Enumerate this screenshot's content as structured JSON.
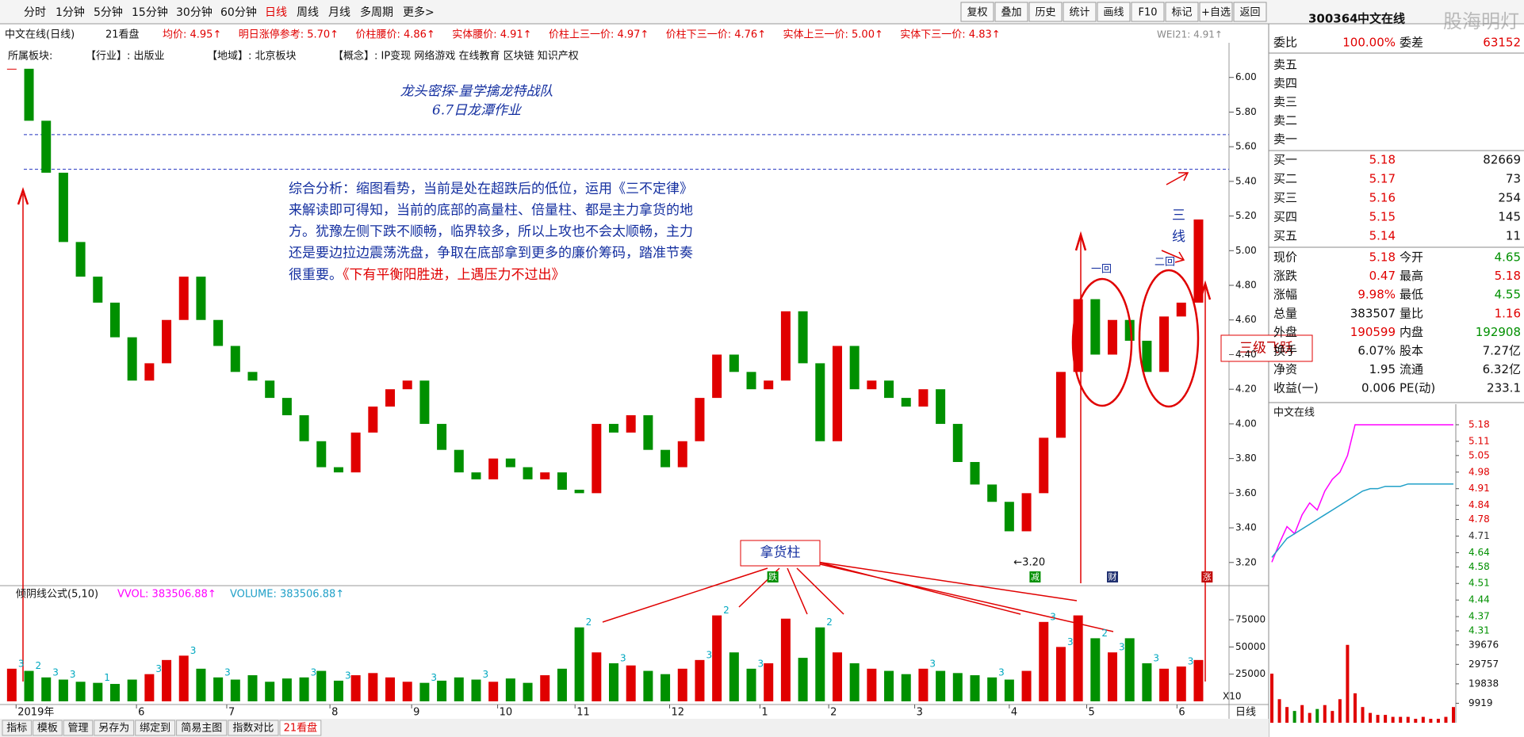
{
  "toolbar": {
    "periods": [
      "分时",
      "1分钟",
      "5分钟",
      "15分钟",
      "30分钟",
      "60分钟",
      "日线",
      "周线",
      "月线",
      "多周期",
      "更多>"
    ],
    "active": 6,
    "buttons": [
      "复权",
      "叠加",
      "历史",
      "统计",
      "画线",
      "F10",
      "标记",
      "+自选",
      "返回"
    ]
  },
  "info": {
    "name": "中文在线(日线)",
    "template": "21看盘",
    "indicators": [
      "均价: 4.95↑",
      "明日涨停参考: 5.70↑",
      "价柱腰价: 4.86↑",
      "实体腰价: 4.91↑",
      "价柱上三一价: 4.97↑",
      "价柱下三一价: 4.76↑",
      "实体上三一价: 5.00↑",
      "实体下三一价: 4.83↑"
    ],
    "wei": "WEI21: 4.91↑"
  },
  "sector": {
    "label": "所属板块:",
    "items": [
      "【行业】: 出版业",
      "【地域】: 北京板块",
      "【概念】: IP变现 网络游戏 在线教育 区块链 知识产权"
    ]
  },
  "annotations": {
    "title": [
      "龙头密探-量学擒龙特战队",
      "6.7日龙潭作业"
    ],
    "analysis": [
      "综合分析：缩图看势，当前是处在超跌后的低位，运用《三不定律》",
      "来解读即可得知，当前的底部的高量柱、倍量柱、都是主力拿货的地",
      "方。犹豫左侧下跌不顺畅，临界较多，所以上攻也不会太顺畅，主力",
      "还是要边拉边震荡洗盘，争取在底部拿到更多的廉价筹码，踏准节奏",
      "很重要。"
    ],
    "analysis_red": "《下有平衡阳胜进，上遇压力不过出》",
    "three_line": "三线",
    "first": "一回",
    "second": "二回",
    "leap": "三级飞跃",
    "pillar": "拿货柱"
  },
  "chart_data": [
    {
      "type": "candlestick",
      "x": [
        0,
        4,
        8,
        12,
        16,
        20,
        24,
        28,
        32,
        36,
        40,
        44,
        48,
        52,
        56,
        60,
        64,
        68,
        72,
        76,
        80,
        84,
        88,
        92,
        96,
        100,
        104,
        108,
        112,
        116,
        120,
        124,
        128,
        132,
        136,
        140,
        144,
        148,
        152,
        156,
        160,
        164,
        168,
        172,
        176,
        180,
        184,
        188,
        192,
        196,
        200,
        204,
        208,
        212,
        216,
        220,
        224,
        228,
        232,
        236,
        240,
        244,
        248,
        252,
        256,
        260,
        264,
        268,
        272,
        276
      ],
      "values": [
        6.05,
        5.75,
        5.45,
        5.05,
        4.85,
        4.7,
        4.5,
        4.25,
        4.35,
        4.6,
        4.85,
        4.6,
        4.45,
        4.3,
        4.25,
        4.15,
        4.05,
        3.9,
        3.75,
        3.72,
        3.95,
        4.1,
        4.2,
        4.25,
        4.0,
        3.85,
        3.72,
        3.68,
        3.8,
        3.75,
        3.68,
        3.72,
        3.62,
        3.6,
        4.0,
        3.95,
        4.05,
        3.85,
        3.75,
        3.9,
        4.15,
        4.4,
        4.3,
        4.2,
        4.25,
        4.65,
        4.35,
        3.9,
        4.45,
        4.2,
        4.25,
        4.15,
        4.1,
        4.2,
        4.0,
        3.78,
        3.65,
        3.55,
        3.38,
        3.6,
        3.92,
        4.3,
        4.72,
        4.4,
        4.6,
        4.48,
        4.3,
        4.62,
        4.7,
        5.18
      ],
      "up_color": "#e00000",
      "down_color": "#009000",
      "xlim": [
        -2,
        282
      ],
      "ylim": [
        3.08,
        6.2
      ],
      "yticks": [
        {
          "value": 3.2,
          "label": "3.20"
        },
        {
          "value": 3.4,
          "label": "3.40"
        },
        {
          "value": 3.6,
          "label": "3.60"
        },
        {
          "value": 3.8,
          "label": "3.80"
        },
        {
          "value": 4.0,
          "label": "4.00"
        },
        {
          "value": 4.2,
          "label": "4.20"
        },
        {
          "value": 4.4,
          "label": "4.40"
        },
        {
          "value": 4.6,
          "label": "4.60"
        },
        {
          "value": 4.8,
          "label": "4.80"
        },
        {
          "value": 5.0,
          "label": "5.00"
        },
        {
          "value": 5.2,
          "label": "5.20"
        },
        {
          "value": 5.4,
          "label": "5.40"
        },
        {
          "value": 5.6,
          "label": "5.60"
        },
        {
          "value": 5.8,
          "label": "5.80"
        },
        {
          "value": 6.0,
          "label": "6.00"
        }
      ],
      "xticks": [
        {
          "value": 1,
          "label": "2019年"
        },
        {
          "value": 29,
          "label": "6"
        },
        {
          "value": 50,
          "label": "7"
        },
        {
          "value": 74,
          "label": "8"
        },
        {
          "value": 93,
          "label": "9"
        },
        {
          "value": 113,
          "label": "10"
        },
        {
          "value": 131,
          "label": "11"
        },
        {
          "value": 153,
          "label": "12"
        },
        {
          "value": 174,
          "label": "1"
        },
        {
          "value": 190,
          "label": "2"
        },
        {
          "value": 210,
          "label": "3"
        },
        {
          "value": 232,
          "label": "4"
        },
        {
          "value": 250,
          "label": "5"
        },
        {
          "value": 271,
          "label": "6"
        }
      ],
      "reference_lines": [
        5.67,
        5.47
      ],
      "low_label": {
        "x": 233,
        "value": 3.2,
        "label": "←3.20"
      },
      "event_marks": {
        "x": [
          177,
          238,
          256,
          278
        ],
        "labels": [
          "跌",
          "减",
          "财",
          "涨"
        ],
        "colors": [
          "#009000",
          "#009000",
          "#203070",
          "#c00000"
        ]
      },
      "period_label": "日线"
    },
    {
      "type": "bar",
      "title": "倾阴线公式(5,10)",
      "legend": [
        "VVOL: 383506.88↑",
        "VOLUME: 383506.88↑"
      ],
      "scale_label": "X10",
      "x": [
        0,
        4,
        8,
        12,
        16,
        20,
        24,
        28,
        32,
        36,
        40,
        44,
        48,
        52,
        56,
        60,
        64,
        68,
        72,
        76,
        80,
        84,
        88,
        92,
        96,
        100,
        104,
        108,
        112,
        116,
        120,
        124,
        128,
        132,
        136,
        140,
        144,
        148,
        152,
        156,
        160,
        164,
        168,
        172,
        176,
        180,
        184,
        188,
        192,
        196,
        200,
        204,
        208,
        212,
        216,
        220,
        224,
        228,
        232,
        236,
        240,
        244,
        248,
        252,
        256,
        260,
        264,
        268,
        272,
        276
      ],
      "values": [
        30000,
        28000,
        22000,
        20000,
        18000,
        17000,
        16000,
        20000,
        25000,
        38000,
        42000,
        30000,
        22000,
        20000,
        24000,
        18000,
        21000,
        22000,
        28000,
        19000,
        24000,
        26000,
        22000,
        18000,
        17000,
        19000,
        22000,
        20000,
        18000,
        21000,
        17000,
        24000,
        30000,
        68000,
        45000,
        35000,
        33000,
        28000,
        25000,
        30000,
        38000,
        79000,
        45000,
        30000,
        35000,
        76000,
        40000,
        68000,
        45000,
        35000,
        30000,
        28000,
        25000,
        30000,
        28000,
        26000,
        24000,
        22000,
        20000,
        28000,
        73000,
        50000,
        79000,
        58000,
        45000,
        58000,
        35000,
        30000,
        32000,
        38000
      ],
      "tags": [
        3,
        2,
        3,
        3,
        null,
        1,
        null,
        null,
        3,
        null,
        3,
        null,
        3,
        null,
        null,
        null,
        null,
        3,
        null,
        3,
        null,
        null,
        null,
        null,
        3,
        null,
        null,
        3,
        null,
        null,
        null,
        null,
        null,
        2,
        null,
        3,
        null,
        null,
        null,
        null,
        3,
        2,
        null,
        3,
        null,
        null,
        null,
        2,
        null,
        null,
        null,
        null,
        null,
        3,
        null,
        null,
        null,
        3,
        null,
        null,
        3,
        3,
        null,
        2,
        3,
        null,
        3,
        null,
        3,
        null
      ],
      "tag_color": "#00a8c0",
      "ylim": [
        0,
        102000
      ],
      "yticks": [
        25000,
        50000,
        75000
      ]
    },
    {
      "type": "line",
      "title": "中文在线",
      "x": [
        0,
        10,
        20,
        30,
        40,
        50,
        60,
        70,
        80,
        90,
        100,
        110,
        120,
        130,
        140,
        150,
        160,
        170,
        180,
        190,
        200,
        210,
        220,
        230,
        240
      ],
      "series": [
        {
          "color": "#ff00ff",
          "values": [
            4.6,
            4.68,
            4.75,
            4.72,
            4.8,
            4.85,
            4.82,
            4.9,
            4.95,
            4.98,
            5.05,
            5.18,
            5.18,
            5.18,
            5.18,
            5.18,
            5.18,
            5.18,
            5.18,
            5.18,
            5.18,
            5.18,
            5.18,
            5.18,
            5.18
          ]
        },
        {
          "color": "#20a0c8",
          "values": [
            4.62,
            4.66,
            4.7,
            4.72,
            4.74,
            4.76,
            4.78,
            4.8,
            4.82,
            4.84,
            4.86,
            4.88,
            4.9,
            4.91,
            4.91,
            4.92,
            4.92,
            4.92,
            4.93,
            4.93,
            4.93,
            4.93,
            4.93,
            4.93,
            4.93
          ]
        }
      ],
      "xlim": [
        0,
        240
      ],
      "ylim": [
        4.28,
        5.21
      ],
      "yticks": [
        5.18,
        5.11,
        5.05,
        4.98,
        4.91,
        4.84,
        4.78,
        4.71,
        4.64,
        4.58,
        4.51,
        4.44,
        4.37,
        4.31
      ],
      "volume": {
        "values": [
          25000,
          12000,
          8000,
          6000,
          9000,
          5000,
          7000,
          9000,
          6000,
          12000,
          39676,
          15000,
          8000,
          5000,
          4000,
          4000,
          3000,
          3000,
          3000,
          2000,
          3000,
          2000,
          2000,
          3000,
          8000
        ],
        "ylim": [
          0,
          42000
        ],
        "yticks": [
          9919,
          19838,
          29757,
          39676
        ]
      }
    }
  ],
  "quote": {
    "code": "300364",
    "name": "中文在线",
    "watermark": "股海明灯",
    "ratio": [
      "委比",
      "100.00%",
      "委差",
      "63152"
    ],
    "asks": [
      "卖五",
      "卖四",
      "卖三",
      "卖二",
      "卖一"
    ],
    "bids": [
      [
        "买一",
        "5.18",
        "82669"
      ],
      [
        "买二",
        "5.17",
        "73"
      ],
      [
        "买三",
        "5.16",
        "254"
      ],
      [
        "买四",
        "5.15",
        "145"
      ],
      [
        "买五",
        "5.14",
        "11"
      ]
    ],
    "stats": [
      [
        "现价",
        "5.18",
        "今开",
        "4.65"
      ],
      [
        "涨跌",
        "0.47",
        "最高",
        "5.18"
      ],
      [
        "涨幅",
        "9.98%",
        "最低",
        "4.55"
      ],
      [
        "总量",
        "383507",
        "量比",
        "1.16"
      ],
      [
        "外盘",
        "190599",
        "内盘",
        "192908"
      ],
      [
        "换手",
        "6.07%",
        "股本",
        "7.27亿"
      ],
      [
        "净资",
        "1.95",
        "流通",
        "6.32亿"
      ],
      [
        "收益(一)",
        "0.006",
        "PE(动)",
        "233.1"
      ]
    ]
  },
  "bottom_tabs": [
    "指标",
    "模板",
    "管理",
    "另存为",
    "绑定到",
    "简易主图",
    "指数对比",
    "21看盘"
  ]
}
